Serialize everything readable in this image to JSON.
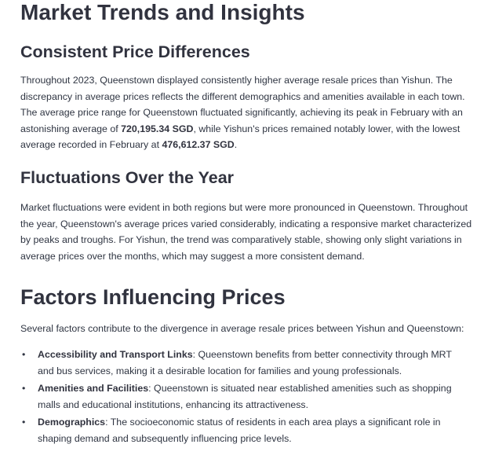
{
  "section1": {
    "title": "Market Trends and Insights",
    "sub1": {
      "title": "Consistent Price Differences",
      "text_a": "Throughout 2023, Queenstown displayed consistently higher average resale prices than Yishun. The discrepancy in average prices reflects the different demographics and amenities available in each town. The average price range for Queenstown fluctuated significantly, achieving its peak in February with an astonishing average of ",
      "bold_a": "720,195.34 SGD",
      "text_b": ", while Yishun's prices remained notably lower, with the lowest average recorded in February at ",
      "bold_b": "476,612.37 SGD",
      "text_c": "."
    },
    "sub2": {
      "title": "Fluctuations Over the Year",
      "text": "Market fluctuations were evident in both regions but were more pronounced in Queenstown. Throughout the year, Queenstown's average prices varied considerably, indicating a responsive market characterized by peaks and troughs. For Yishun, the trend was comparatively stable, showing only slight variations in average prices over the months, which may suggest a more consistent demand."
    }
  },
  "section2": {
    "title": "Factors Influencing Prices",
    "intro": "Several factors contribute to the divergence in average resale prices between Yishun and Queenstown:",
    "items": [
      {
        "bullet": "•",
        "label": "Accessibility and Transport Links",
        "text": ": Queenstown benefits from better connectivity through MRT and bus services, making it a desirable location for families and young professionals."
      },
      {
        "bullet": "•",
        "label": "Amenities and Facilities",
        "text": ": Queenstown is situated near established amenities such as shopping malls and educational institutions, enhancing its attractiveness."
      },
      {
        "bullet": "•",
        "label": "Demographics",
        "text": ": The socioeconomic status of residents in each area plays a significant role in shaping demand and subsequently influencing price levels."
      }
    ]
  }
}
